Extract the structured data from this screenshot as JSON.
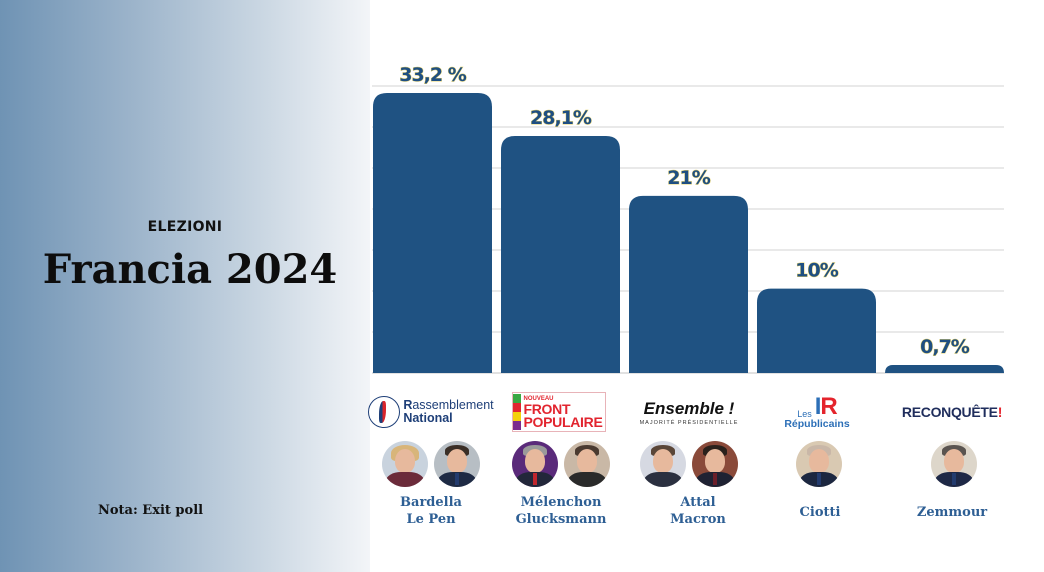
{
  "header": {
    "kicker": "ELEZIONI",
    "title": "Francia 2024"
  },
  "note": "Nota: Exit poll",
  "colors": {
    "bar": "#1f5282",
    "label_fill": "#1f4f82",
    "label_outline": "#e8d36a",
    "gridline": "#dcdcdc",
    "names": "#2e5f94"
  },
  "parties": [
    {
      "name": "Rassemblement National",
      "logo_line1_first": "R",
      "logo_line1_rest": "assemblement",
      "logo_line2": "National",
      "leaders": [
        "Bardella",
        "Le Pen"
      ]
    },
    {
      "name": "Nouveau Front Populaire",
      "logo_small": "NOUVEAU",
      "logo_line1": "FRONT",
      "logo_line2": "POPULAIRE",
      "leaders": [
        "Mélenchon",
        "Glucksmann"
      ]
    },
    {
      "name": "Ensemble !",
      "logo_line1": "Ensemble !",
      "logo_line2": "MAJORITÉ PRÉSIDENTIELLE",
      "leaders": [
        "Attal",
        "Macron"
      ]
    },
    {
      "name": "Les Républicains",
      "logo_small": "Les",
      "logo_mark": "IR",
      "logo_line2": "Républicains",
      "leaders": [
        "Ciotti"
      ]
    },
    {
      "name": "Reconquête!",
      "logo_line1": "RECONQUÊTE",
      "logo_mark": "!",
      "leaders": [
        "Zemmour"
      ]
    }
  ],
  "chart_data": {
    "type": "bar",
    "title": "Francia 2024",
    "subtitle": "ELEZIONI",
    "categories": [
      "Rassemblement National",
      "Nouveau Front Populaire",
      "Ensemble !",
      "Les Républicains",
      "Reconquête!"
    ],
    "values": [
      33.2,
      28.1,
      21,
      10,
      0.7
    ],
    "data_labels": [
      "33,2 %",
      "28,1%",
      "21%",
      "10%",
      "0,7%"
    ],
    "unit": "%",
    "xlabel": "",
    "ylabel": "",
    "ylim": [
      0,
      35
    ],
    "grid": true,
    "gridline_count": 7,
    "legend": "none",
    "annotation": "Nota: Exit poll"
  }
}
